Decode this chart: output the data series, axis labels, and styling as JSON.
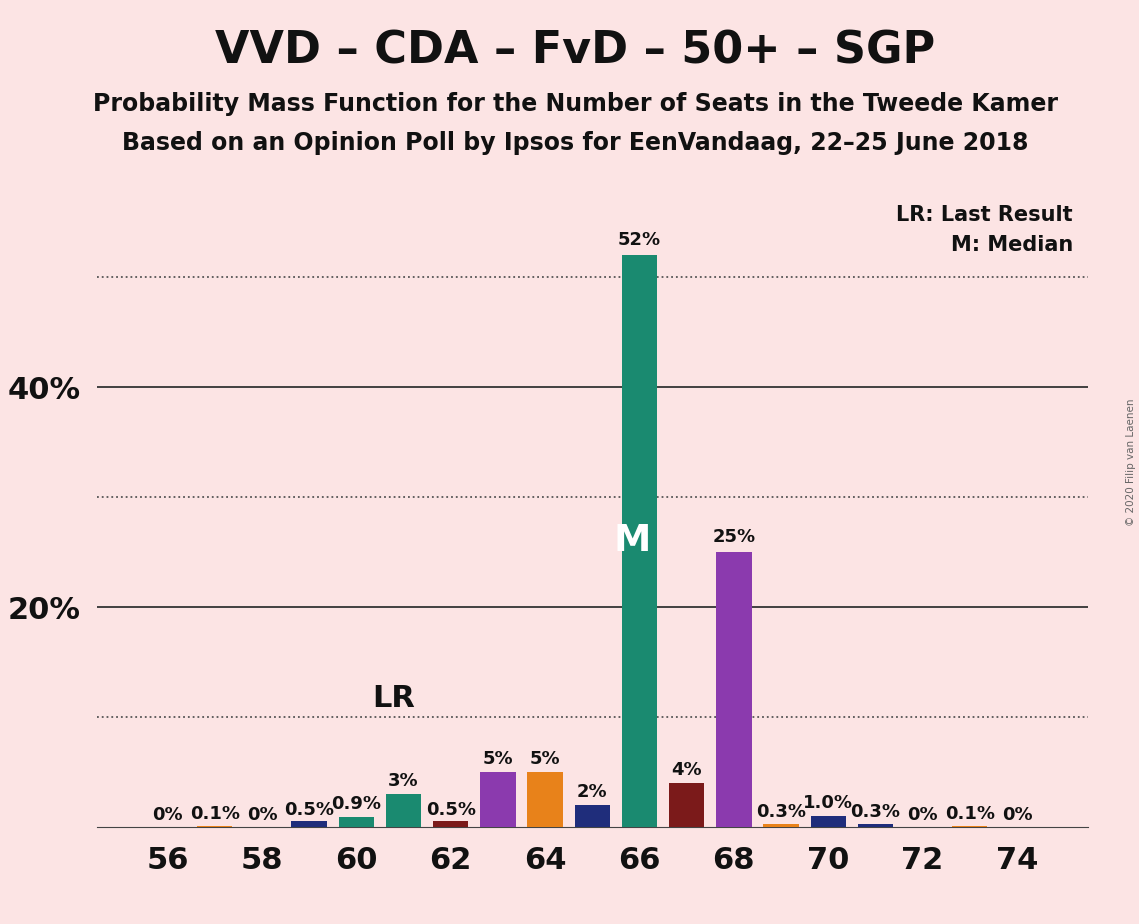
{
  "title": "VVD – CDA – FvD – 50+ – SGP",
  "subtitle1": "Probability Mass Function for the Number of Seats in the Tweede Kamer",
  "subtitle2": "Based on an Opinion Poll by Ipsos for EenVandaag, 22–25 June 2018",
  "copyright": "© 2020 Filip van Laenen",
  "legend_lr": "LR: Last Result",
  "legend_m": "M: Median",
  "background_color": "#fce4e4",
  "seats": [
    56,
    57,
    58,
    59,
    60,
    61,
    62,
    63,
    64,
    65,
    66,
    67,
    68,
    69,
    70,
    71,
    72,
    73,
    74
  ],
  "values": [
    0.0,
    0.1,
    0.0,
    0.5,
    0.9,
    3.0,
    0.5,
    5.0,
    5.0,
    2.0,
    52.0,
    4.0,
    25.0,
    0.3,
    1.0,
    0.3,
    0.0,
    0.1,
    0.0
  ],
  "labels": [
    "0%",
    "0.1%",
    "0%",
    "0.5%",
    "0.9%",
    "3%",
    "0.5%",
    "5%",
    "5%",
    "2%",
    "52%",
    "4%",
    "25%",
    "0.3%",
    "1.0%",
    "0.3%",
    "0%",
    "0.1%",
    "0%"
  ],
  "bar_colors": [
    "#E8821A",
    "#E8821A",
    "#E8821A",
    "#1F2D7B",
    "#1A8A70",
    "#1A8A70",
    "#7B1A1A",
    "#8B3AAE",
    "#E8821A",
    "#1F2D7B",
    "#1A8A70",
    "#7B1A1A",
    "#8B3AAE",
    "#E8821A",
    "#1F2D7B",
    "#1F2D7B",
    "#E8821A",
    "#E8821A",
    "#1A8A70"
  ],
  "median_seat": 66,
  "lr_seat": 62,
  "xlabel_seats": [
    56,
    58,
    60,
    62,
    64,
    66,
    68,
    70,
    72,
    74
  ],
  "title_fontsize": 32,
  "subtitle_fontsize": 17,
  "axis_tick_fontsize": 22,
  "bar_label_fontsize": 13,
  "bar_width": 0.75,
  "ylim_max": 58,
  "ytick_solid": [
    20,
    40
  ],
  "ytick_dotted": [
    10,
    30,
    50
  ]
}
